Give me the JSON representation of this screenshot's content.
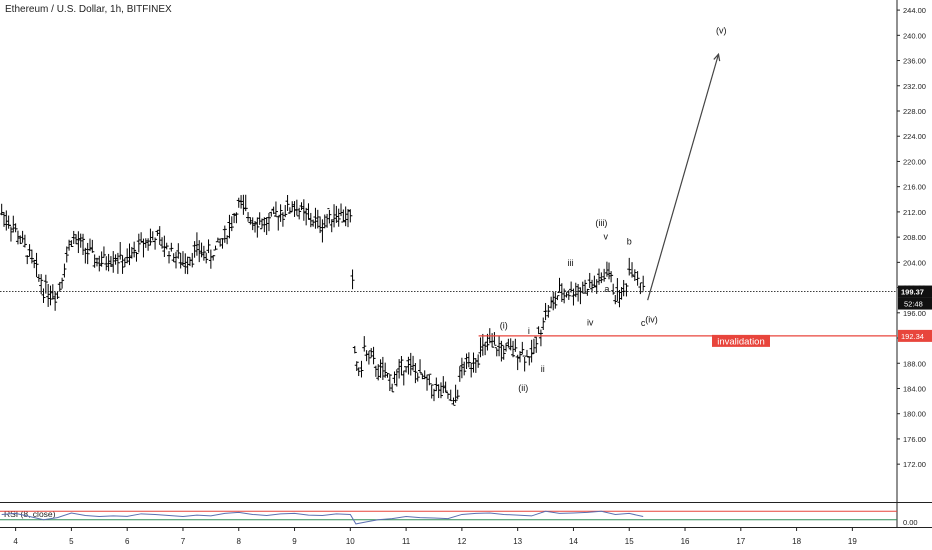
{
  "chart_data": {
    "type": "line",
    "title": "Ethereum / U.S. Dollar, 1h, BITFINEX",
    "price_axis": {
      "ylim": [
        166.0,
        245.6
      ],
      "ticks": [
        "244.00",
        "240.00",
        "236.00",
        "232.00",
        "228.00",
        "224.00",
        "220.00",
        "216.00",
        "212.00",
        "208.00",
        "204.00",
        "200.00",
        "196.00",
        "192.00",
        "188.00",
        "184.00",
        "180.00",
        "176.00",
        "172.00"
      ],
      "tick_values": [
        244,
        240,
        236,
        232,
        228,
        224,
        220,
        216,
        212,
        208,
        204,
        200,
        196,
        192,
        188,
        184,
        180,
        176,
        172
      ],
      "grid": false
    },
    "time_axis": {
      "ticks": [
        "4",
        "5",
        "6",
        "7",
        "8",
        "9",
        "10",
        "11",
        "12",
        "13",
        "14",
        "15",
        "16",
        "17",
        "18",
        "19"
      ],
      "tick_values": [
        4,
        5,
        6,
        7,
        8,
        9,
        10,
        11,
        12,
        13,
        14,
        15,
        16,
        17,
        18,
        19
      ],
      "xlim": [
        3.72,
        19.8
      ]
    },
    "series": [
      {
        "style": "ohlc-bars",
        "x": [
          3.75,
          4.0,
          4.25,
          4.5,
          4.75,
          5.0,
          5.25,
          5.5,
          5.75,
          6.0,
          6.25,
          6.5,
          6.75,
          7.0,
          7.25,
          7.5,
          7.75,
          8.0,
          8.25,
          8.5,
          8.75,
          9.0,
          9.25,
          9.5,
          9.75,
          10.0,
          10.08,
          10.15,
          10.25,
          10.5,
          10.75,
          11.0,
          11.25,
          11.5,
          11.75,
          11.85,
          12.0,
          12.25,
          12.5,
          12.75,
          13.0,
          13.25,
          13.5,
          13.6,
          13.75,
          14.0,
          14.25,
          14.5,
          14.6,
          14.75,
          14.9,
          15.0,
          15.1,
          15.2,
          15.3
        ],
        "y": [
          212,
          209,
          205,
          200,
          199,
          208,
          206,
          204,
          205,
          204,
          207,
          208,
          206,
          204,
          206,
          205,
          208,
          213,
          211,
          210,
          212,
          213,
          211,
          210,
          212,
          211,
          190,
          186,
          190,
          187,
          185,
          188,
          186,
          184,
          183,
          181,
          187,
          189,
          191,
          190,
          190,
          189,
          196,
          197,
          199,
          199.5,
          200,
          201,
          203,
          199,
          199,
          203,
          203,
          201,
          199.5
        ]
      }
    ],
    "current_price": "199.37",
    "countdown": "52:48",
    "invalidation_level": {
      "value": 192.34,
      "label": "192.34",
      "text": "invalidation"
    },
    "wave_labels": [
      {
        "text": "(i)",
        "x": 12.75,
        "y": 193.5
      },
      {
        "text": "i",
        "x": 13.2,
        "y": 192.6
      },
      {
        "text": "(ii)",
        "x": 13.1,
        "y": 183.6
      },
      {
        "text": "ii",
        "x": 13.45,
        "y": 186.6
      },
      {
        "text": "iii",
        "x": 13.95,
        "y": 203.4
      },
      {
        "text": "(iii)",
        "x": 14.5,
        "y": 209.8
      },
      {
        "text": "v",
        "x": 14.58,
        "y": 207.6
      },
      {
        "text": "iv",
        "x": 14.3,
        "y": 194.0
      },
      {
        "text": "a",
        "x": 14.6,
        "y": 199.3
      },
      {
        "text": "b",
        "x": 15.0,
        "y": 206.8
      },
      {
        "text": "c",
        "x": 15.25,
        "y": 193.9
      },
      {
        "text": "(iv)",
        "x": 15.4,
        "y": 194.5
      },
      {
        "text": "(v)",
        "x": 16.65,
        "y": 240.3
      }
    ],
    "projection": {
      "from": [
        15.33,
        198.0
      ],
      "to": [
        16.6,
        237.0
      ]
    },
    "rsi": {
      "label": "RSI (8, close)",
      "axis_tick": "0.00",
      "levels": [
        70,
        30
      ],
      "x": [
        3.75,
        4.0,
        4.25,
        4.5,
        4.75,
        5.0,
        5.25,
        5.5,
        5.75,
        6.0,
        6.25,
        6.5,
        6.75,
        7.0,
        7.25,
        7.5,
        7.75,
        8.0,
        8.25,
        8.5,
        8.75,
        9.0,
        9.25,
        9.5,
        9.75,
        10.0,
        10.1,
        10.3,
        10.5,
        10.75,
        11.0,
        11.25,
        11.5,
        11.75,
        12.0,
        12.25,
        12.5,
        12.75,
        13.0,
        13.25,
        13.5,
        13.75,
        14.0,
        14.25,
        14.5,
        14.75,
        15.0,
        15.25
      ],
      "values": [
        55,
        60,
        45,
        30,
        40,
        62,
        50,
        45,
        48,
        46,
        58,
        55,
        50,
        45,
        52,
        48,
        60,
        65,
        55,
        50,
        58,
        60,
        52,
        50,
        58,
        55,
        10,
        20,
        30,
        35,
        45,
        40,
        38,
        35,
        55,
        60,
        62,
        55,
        52,
        48,
        70,
        60,
        62,
        65,
        70,
        55,
        60,
        45
      ]
    },
    "colors": {
      "bars": "#000000",
      "invalidation": "#e8453c",
      "projection": "#444444",
      "rsi_line": "#5b6fb0",
      "rsi_upper": "#e8453c",
      "rsi_lower": "#2e8b57",
      "axis_text": "#222222"
    }
  }
}
